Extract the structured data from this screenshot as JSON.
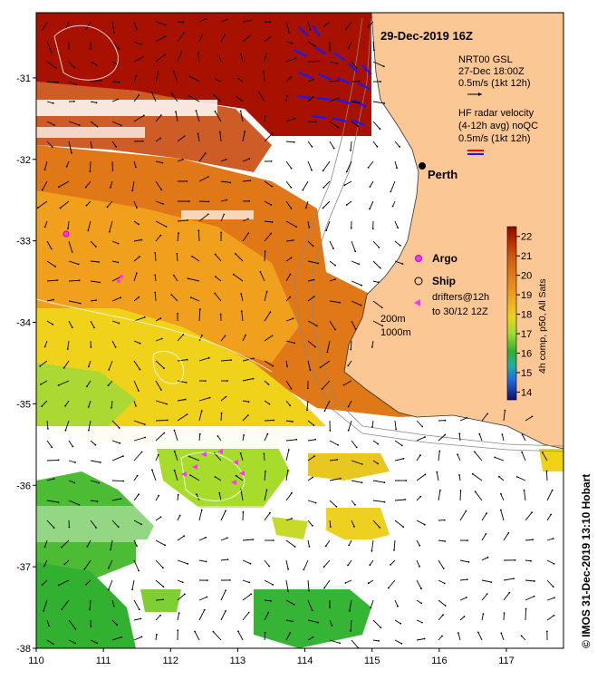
{
  "map": {
    "title": "29-Dec-2019 16Z",
    "lon_range": [
      110,
      117.85
    ],
    "lat_range": [
      -38,
      -30.2
    ],
    "x_ticks": [
      "110",
      "111",
      "112",
      "113",
      "114",
      "115",
      "116",
      "117"
    ],
    "y_ticks": [
      "-31",
      "-32",
      "-33",
      "-34",
      "-35",
      "-36",
      "-37",
      "-38"
    ],
    "credit": "© IMOS 31-Dec-2019 13:10 Hobart",
    "colors": {
      "land": "#fbc794",
      "hf_red": "#ff0000",
      "hf_blue": "#1818ff",
      "argo": "#ff33ff"
    }
  },
  "legend": {
    "nrt_title": "NRT00 GSL",
    "nrt_time": "27-Dec 18:00Z",
    "nrt_scale": "0.5m/s (1kt 12h)",
    "hf_title": "HF radar velocity",
    "hf_sub": "(4-12h avg) noQC",
    "hf_scale": "0.5m/s (1kt 12h)"
  },
  "places": {
    "city": "Perth"
  },
  "markers": {
    "argo_label": "Argo",
    "ship_label": "Ship",
    "drifter_line1": "drifters@12h",
    "drifter_line2": "to 30/12 12Z"
  },
  "contours": {
    "c200": "200m",
    "c1000": "1000m"
  },
  "colorbar": {
    "label": "4h comp, p50, All Sats",
    "ticks": [
      "22",
      "21",
      "20",
      "19",
      "18",
      "17",
      "16",
      "15",
      "14"
    ],
    "min": 13.6,
    "max": 22.5
  }
}
